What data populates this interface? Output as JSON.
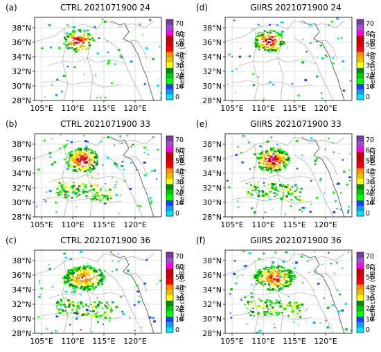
{
  "panels": [
    {
      "label": "(a)",
      "title": "CTRL 2021071900 24",
      "stage": 0,
      "seed": 11
    },
    {
      "label": "(d)",
      "title": "GIIRS 2021071900 24",
      "stage": 0,
      "seed": 23
    },
    {
      "label": "(b)",
      "title": "CTRL 2021071900 33",
      "stage": 1,
      "seed": 37
    },
    {
      "label": "(e)",
      "title": "GIIRS 2021071900 33",
      "stage": 1,
      "seed": 41
    },
    {
      "label": "(c)",
      "title": "CTRL 2021071900 36",
      "stage": 2,
      "seed": 53
    },
    {
      "label": "(f)",
      "title": "GIIRS 2021071900 36",
      "stage": 2,
      "seed": 67
    }
  ],
  "lat_ticks": [
    "38°N",
    "36°N",
    "34°N",
    "32°N",
    "30°N",
    "28°N"
  ],
  "lon_ticks": [
    "105°E",
    "110°E",
    "115°E",
    "120°E"
  ],
  "colorbar": {
    "label": "Reflectivity (dBZ)",
    "ticks": [
      "70",
      "60",
      "50",
      "40",
      "30",
      "20",
      "10",
      "0"
    ],
    "colors": [
      "#00e5ff",
      "#0aa0f0",
      "#1e3cff",
      "#00ff00",
      "#00c800",
      "#008c00",
      "#ffff00",
      "#e6c000",
      "#ff9000",
      "#ff0000",
      "#d00000",
      "#c00000",
      "#ff00f0",
      "#9955c9",
      "#7a3aa8"
    ]
  }
}
